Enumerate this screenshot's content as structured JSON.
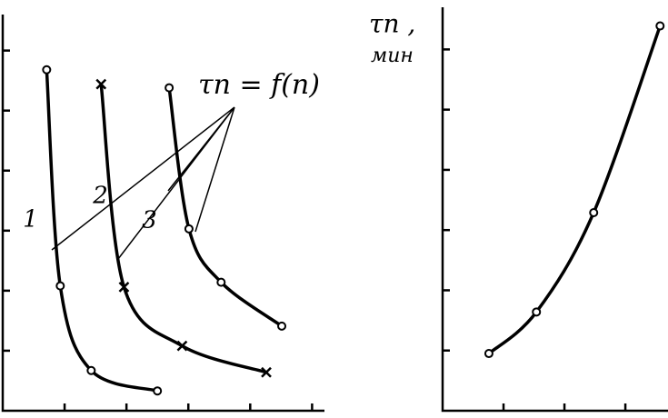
{
  "chart_data": [
    {
      "type": "line",
      "annotation": "τп = f(п)",
      "xlim": [
        0,
        5.2
      ],
      "ylim": [
        0,
        6.6
      ],
      "xticks": [
        1,
        2,
        3,
        4,
        5
      ],
      "yticks": [
        1,
        2,
        3,
        4,
        5,
        6
      ],
      "series": [
        {
          "name": "1",
          "marker": "o",
          "x": [
            0.71,
            0.93,
            1.43,
            2.5
          ],
          "y": [
            5.68,
            2.08,
            0.67,
            0.33
          ]
        },
        {
          "name": "2",
          "marker": "x",
          "x": [
            1.59,
            1.96,
            2.9,
            4.26
          ],
          "y": [
            5.44,
            2.06,
            1.08,
            0.64
          ]
        },
        {
          "name": "3",
          "marker": "o",
          "x": [
            2.69,
            3.01,
            3.53,
            4.51
          ],
          "y": [
            5.38,
            3.03,
            2.14,
            1.41
          ]
        }
      ]
    },
    {
      "type": "line",
      "ylabel": [
        "τп ,",
        "мин"
      ],
      "xlim": [
        0,
        3.7
      ],
      "ylim": [
        0,
        6.7
      ],
      "xticks": [
        1,
        2,
        3
      ],
      "yticks": [
        1,
        2,
        3,
        4,
        5,
        6
      ],
      "series": [
        {
          "marker": "o",
          "x": [
            0.76,
            1.54,
            2.48,
            3.57
          ],
          "y": [
            0.95,
            1.64,
            3.29,
            6.39
          ]
        }
      ]
    }
  ]
}
